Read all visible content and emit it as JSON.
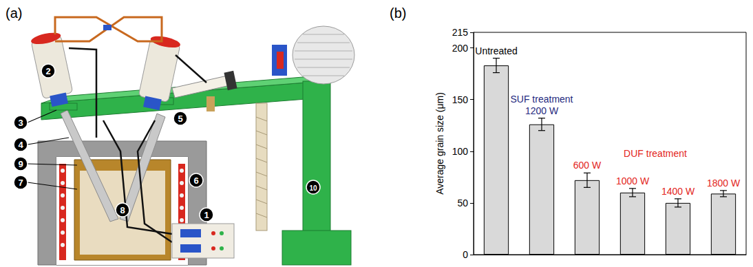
{
  "diagram": {
    "panel_label": "(a)",
    "callouts": [
      "1",
      "2",
      "3",
      "4",
      "5",
      "6",
      "7",
      "8",
      "9",
      "10"
    ]
  },
  "chart_data": {
    "panel_label": "(b)",
    "type": "bar",
    "y_label": "Average grain size (μm)",
    "categories": [
      null,
      null,
      null,
      null,
      null,
      null
    ],
    "values": [
      183,
      126,
      72,
      60,
      50,
      59
    ],
    "errors": [
      7,
      6,
      7,
      4,
      4,
      3
    ],
    "color": "#d9d9d9",
    "ylim": [
      0,
      215
    ],
    "yticks": [
      0,
      50,
      100,
      150,
      200
    ],
    "grid": false,
    "tick_labels": "y",
    "annotations": [
      {
        "text": "Untreated",
        "color": "#000000",
        "bars": [
          0
        ]
      },
      {
        "text": "SUF treatment",
        "color": "#1f2a80",
        "bars": [
          1
        ]
      },
      {
        "text": "1200 W",
        "color": "#1f2a80",
        "bars": [
          1
        ]
      },
      {
        "text": "DUF treatment",
        "color": "#e3251c",
        "bars": [
          2,
          5
        ]
      },
      {
        "text": "600 W",
        "color": "#e3251c",
        "bars": [
          2
        ]
      },
      {
        "text": "1000 W",
        "color": "#e3251c",
        "bars": [
          3
        ]
      },
      {
        "text": "1400 W",
        "color": "#e3251c",
        "bars": [
          4
        ]
      },
      {
        "text": "1800 W",
        "color": "#e3251c",
        "bars": [
          5
        ]
      }
    ]
  }
}
